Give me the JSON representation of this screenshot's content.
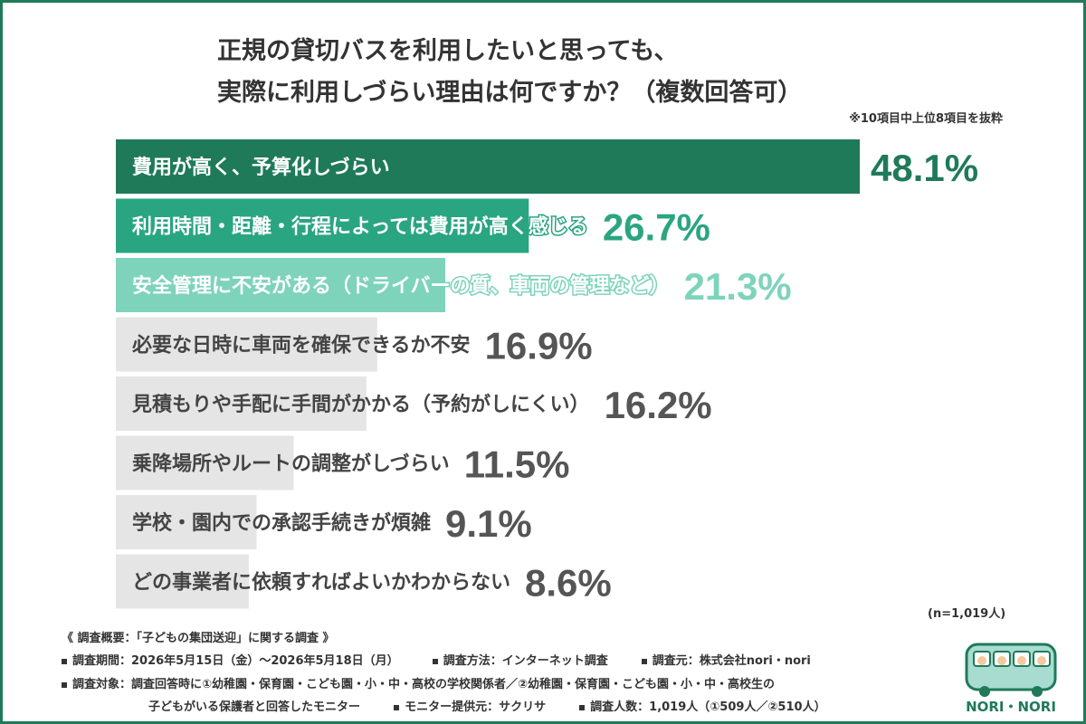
{
  "title": {
    "line1": "正規の貸切バスを利用したいと思っても、",
    "line2": "実際に利用しづらい理由は何ですか？（複数回答可）"
  },
  "note": "※10項目中上位8項目を抜粋",
  "n_label": "(n=1,019人)",
  "chart_data": {
    "type": "bar",
    "orientation": "horizontal",
    "categories": [
      "費用が高く、予算化しづらい",
      "利用時間・距離・行程によっては費用が高く感じる",
      "安全管理に不安がある（ドライバーの質、車両の管理など）",
      "必要な日時に車両を確保できるか不安",
      "見積もりや手配に手間がかかる（予約がしにくい）",
      "乗降場所やルートの調整がしづらい",
      "学校・園内での承認手続きが煩雑",
      "どの事業者に依頼すればよいかわからない"
    ],
    "values": [
      48.1,
      26.7,
      21.3,
      16.9,
      16.2,
      11.5,
      9.1,
      8.6
    ],
    "value_labels": [
      "48.1%",
      "26.7%",
      "21.3%",
      "16.9%",
      "16.2%",
      "11.5%",
      "9.1%",
      "8.6%"
    ],
    "bar_colors": [
      "#1f7a5a",
      "#2aa582",
      "#7ed3bb",
      "#e5e5e5",
      "#e5e5e5",
      "#e5e5e5",
      "#e5e5e5",
      "#e5e5e5"
    ],
    "value_colors": [
      "#1f7a5a",
      "#2aa582",
      "#7ed3bb",
      "#555555",
      "#555555",
      "#555555",
      "#555555",
      "#555555"
    ],
    "label_colors": [
      "#ffffff",
      "#ffffff",
      "#ffffff",
      "#444444",
      "#444444",
      "#444444",
      "#444444",
      "#444444"
    ],
    "xlim": [
      0,
      48.1
    ]
  },
  "footer": {
    "heading": "《 調査概要：「子どもの集団送迎」に関する調査 》",
    "period": "調査期間：2026年5月15日（金）〜2026年5月18日（月）",
    "method": "調査方法：インターネット調査",
    "source": "調査元：株式会社nori・nori",
    "target1": "調査対象：調査回答時に①幼稚園・保育園・こども園・小・中・高校の学校関係者／②幼稚園・保育園・こども園・小・中・高校生の",
    "target2": "子どもがいる保護者と回答したモニター",
    "provider": "モニター提供元：サクリサ",
    "count": "調査人数：1,019人（①509人／②510人）"
  },
  "logo": {
    "text": "NORI・NORI",
    "color": "#1f7a5a",
    "bus_color": "#a8dcd0"
  }
}
